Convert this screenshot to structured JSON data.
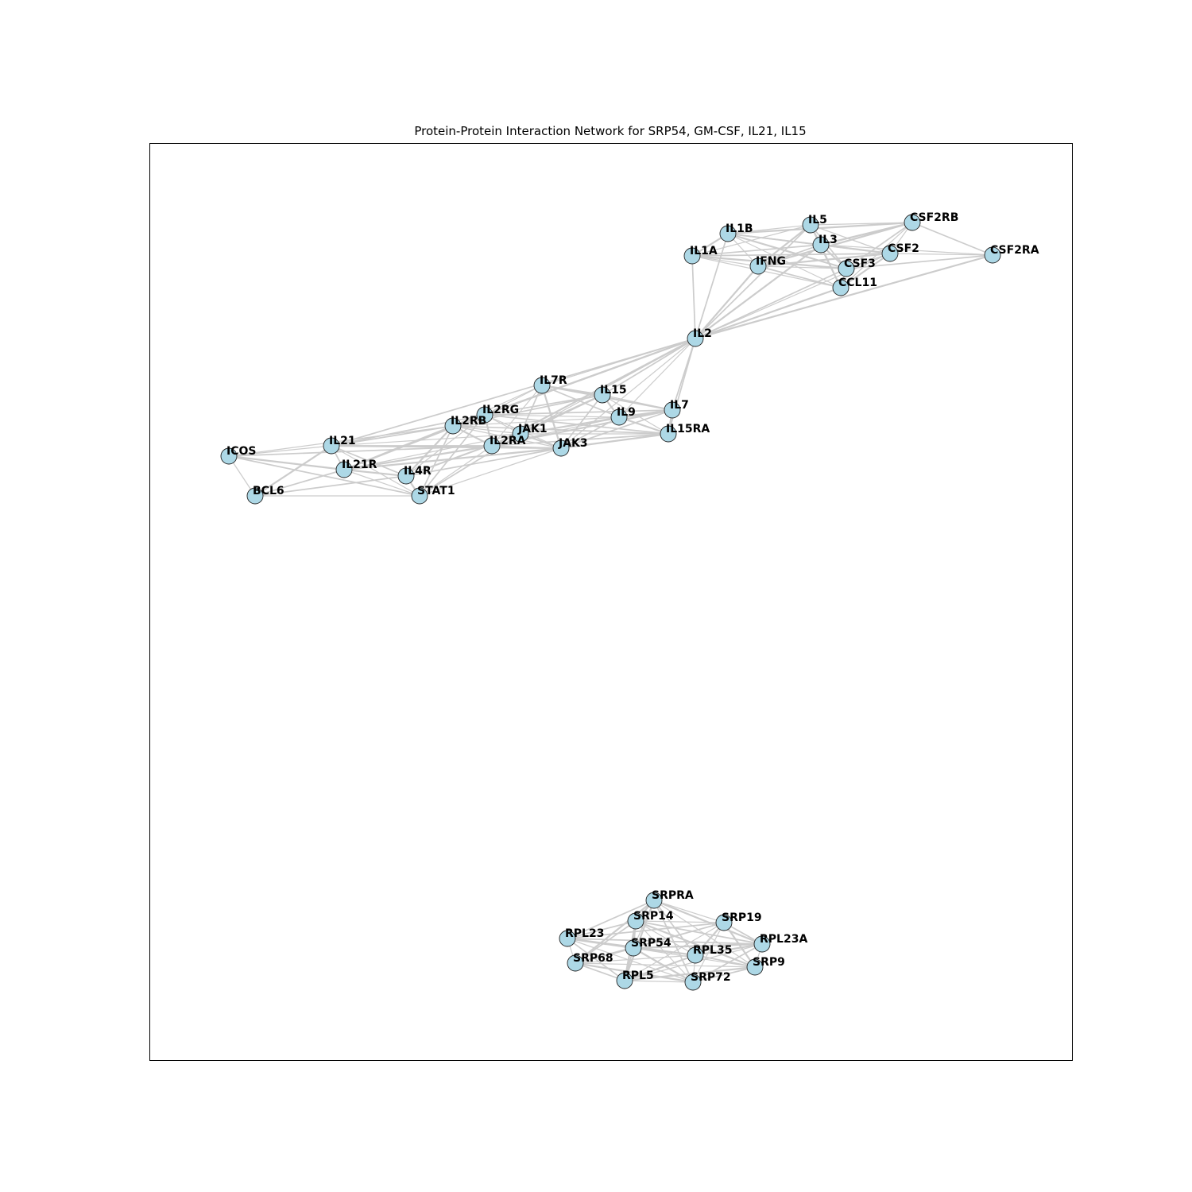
{
  "title": "Protein-Protein Interaction Network for SRP54, GM-CSF, IL21, IL15",
  "colors": {
    "node_fill": "#add8e6",
    "node_stroke": "#222222",
    "edge": "#cccccc",
    "label": "#000000"
  },
  "nodes": [
    {
      "id": "IL1B",
      "label": "IL1B"
    },
    {
      "id": "IL5",
      "label": "IL5"
    },
    {
      "id": "CSF2RB",
      "label": "CSF2RB"
    },
    {
      "id": "IL3",
      "label": "IL3"
    },
    {
      "id": "IL1A",
      "label": "IL1A"
    },
    {
      "id": "IFNG",
      "label": "IFNG"
    },
    {
      "id": "CSF2",
      "label": "CSF2"
    },
    {
      "id": "CSF2RA",
      "label": "CSF2RA"
    },
    {
      "id": "CSF3",
      "label": "CSF3"
    },
    {
      "id": "CCL11",
      "label": "CCL11"
    },
    {
      "id": "IL2",
      "label": "IL2"
    },
    {
      "id": "IL7R",
      "label": "IL7R"
    },
    {
      "id": "IL15",
      "label": "IL15"
    },
    {
      "id": "IL2RG",
      "label": "IL2RG"
    },
    {
      "id": "IL9",
      "label": "IL9"
    },
    {
      "id": "IL7",
      "label": "IL7"
    },
    {
      "id": "IL2RB",
      "label": "IL2RB"
    },
    {
      "id": "JAK1",
      "label": "JAK1"
    },
    {
      "id": "IL15RA",
      "label": "IL15RA"
    },
    {
      "id": "IL21",
      "label": "IL21"
    },
    {
      "id": "IL2RA",
      "label": "IL2RA"
    },
    {
      "id": "JAK3",
      "label": "JAK3"
    },
    {
      "id": "ICOS",
      "label": "ICOS"
    },
    {
      "id": "IL21R",
      "label": "IL21R"
    },
    {
      "id": "IL4R",
      "label": "IL4R"
    },
    {
      "id": "BCL6",
      "label": "BCL6"
    },
    {
      "id": "STAT1",
      "label": "STAT1"
    },
    {
      "id": "SRPRA",
      "label": "SRPRA"
    },
    {
      "id": "SRP14",
      "label": "SRP14"
    },
    {
      "id": "SRP19",
      "label": "SRP19"
    },
    {
      "id": "RPL23",
      "label": "RPL23"
    },
    {
      "id": "RPL23A",
      "label": "RPL23A"
    },
    {
      "id": "SRP54",
      "label": "SRP54"
    },
    {
      "id": "RPL35",
      "label": "RPL35"
    },
    {
      "id": "SRP68",
      "label": "SRP68"
    },
    {
      "id": "SRP9",
      "label": "SRP9"
    },
    {
      "id": "RPL5",
      "label": "RPL5"
    },
    {
      "id": "SRP72",
      "label": "SRP72"
    }
  ],
  "edges": [
    [
      "IL1B",
      "IL5"
    ],
    [
      "IL1B",
      "IL3"
    ],
    [
      "IL1B",
      "IL1A"
    ],
    [
      "IL1B",
      "IFNG"
    ],
    [
      "IL1B",
      "CSF2"
    ],
    [
      "IL1B",
      "CSF3"
    ],
    [
      "IL1B",
      "CCL11"
    ],
    [
      "IL1B",
      "IL2"
    ],
    [
      "IL1B",
      "CSF2RB"
    ],
    [
      "IL5",
      "CSF2RB"
    ],
    [
      "IL5",
      "IL3"
    ],
    [
      "IL5",
      "IFNG"
    ],
    [
      "IL5",
      "CSF2"
    ],
    [
      "IL5",
      "CSF3"
    ],
    [
      "IL5",
      "CCL11"
    ],
    [
      "IL5",
      "IL1A"
    ],
    [
      "IL5",
      "IL2"
    ],
    [
      "CSF2RB",
      "IL3"
    ],
    [
      "CSF2RB",
      "CSF2"
    ],
    [
      "CSF2RB",
      "CSF2RA"
    ],
    [
      "CSF2RB",
      "IFNG"
    ],
    [
      "CSF2RB",
      "CCL11"
    ],
    [
      "CSF2RB",
      "CSF3"
    ],
    [
      "IL3",
      "CSF2"
    ],
    [
      "IL3",
      "CSF2RA"
    ],
    [
      "IL3",
      "IFNG"
    ],
    [
      "IL3",
      "CSF3"
    ],
    [
      "IL3",
      "CCL11"
    ],
    [
      "IL3",
      "IL1A"
    ],
    [
      "IL3",
      "IL2"
    ],
    [
      "IL1A",
      "IFNG"
    ],
    [
      "IL1A",
      "CSF2"
    ],
    [
      "IL1A",
      "CSF3"
    ],
    [
      "IL1A",
      "CCL11"
    ],
    [
      "IL1A",
      "IL2"
    ],
    [
      "IFNG",
      "CSF2"
    ],
    [
      "IFNG",
      "CSF3"
    ],
    [
      "IFNG",
      "CCL11"
    ],
    [
      "IFNG",
      "IL2"
    ],
    [
      "CSF2",
      "CSF2RA"
    ],
    [
      "CSF2",
      "CSF3"
    ],
    [
      "CSF2",
      "CCL11"
    ],
    [
      "CSF2",
      "IL2"
    ],
    [
      "CSF2RA",
      "CSF3"
    ],
    [
      "CSF2RA",
      "IL2"
    ],
    [
      "CSF3",
      "CCL11"
    ],
    [
      "CSF3",
      "IL2"
    ],
    [
      "CCL11",
      "IL2"
    ],
    [
      "IL2",
      "IL7R"
    ],
    [
      "IL2",
      "IL15"
    ],
    [
      "IL2",
      "IL2RG"
    ],
    [
      "IL2",
      "IL9"
    ],
    [
      "IL2",
      "IL7"
    ],
    [
      "IL2",
      "IL2RB"
    ],
    [
      "IL2",
      "JAK1"
    ],
    [
      "IL2",
      "IL15RA"
    ],
    [
      "IL2",
      "IL2RA"
    ],
    [
      "IL2",
      "JAK3"
    ],
    [
      "IL2",
      "IL21"
    ],
    [
      "IL7R",
      "IL15"
    ],
    [
      "IL7R",
      "IL2RG"
    ],
    [
      "IL7R",
      "IL9"
    ],
    [
      "IL7R",
      "IL7"
    ],
    [
      "IL7R",
      "IL2RB"
    ],
    [
      "IL7R",
      "JAK1"
    ],
    [
      "IL7R",
      "JAK3"
    ],
    [
      "IL7R",
      "IL2RA"
    ],
    [
      "IL15",
      "IL2RG"
    ],
    [
      "IL15",
      "IL9"
    ],
    [
      "IL15",
      "IL7"
    ],
    [
      "IL15",
      "IL2RB"
    ],
    [
      "IL15",
      "JAK1"
    ],
    [
      "IL15",
      "IL15RA"
    ],
    [
      "IL15",
      "JAK3"
    ],
    [
      "IL15",
      "IL2RA"
    ],
    [
      "IL2RG",
      "IL9"
    ],
    [
      "IL2RG",
      "IL7"
    ],
    [
      "IL2RG",
      "IL2RB"
    ],
    [
      "IL2RG",
      "JAK1"
    ],
    [
      "IL2RG",
      "IL15RA"
    ],
    [
      "IL2RG",
      "IL2RA"
    ],
    [
      "IL2RG",
      "JAK3"
    ],
    [
      "IL2RG",
      "IL21"
    ],
    [
      "IL2RG",
      "IL21R"
    ],
    [
      "IL2RG",
      "IL4R"
    ],
    [
      "IL2RG",
      "STAT1"
    ],
    [
      "IL9",
      "IL7"
    ],
    [
      "IL9",
      "IL2RB"
    ],
    [
      "IL9",
      "JAK1"
    ],
    [
      "IL9",
      "IL15RA"
    ],
    [
      "IL9",
      "IL2RA"
    ],
    [
      "IL9",
      "JAK3"
    ],
    [
      "IL7",
      "IL15RA"
    ],
    [
      "IL7",
      "JAK1"
    ],
    [
      "IL7",
      "JAK3"
    ],
    [
      "IL7",
      "IL2RA"
    ],
    [
      "IL2RB",
      "JAK1"
    ],
    [
      "IL2RB",
      "IL15RA"
    ],
    [
      "IL2RB",
      "IL2RA"
    ],
    [
      "IL2RB",
      "JAK3"
    ],
    [
      "IL2RB",
      "IL21"
    ],
    [
      "IL2RB",
      "IL21R"
    ],
    [
      "IL2RB",
      "ICOS"
    ],
    [
      "IL2RB",
      "STAT1"
    ],
    [
      "IL2RB",
      "IL4R"
    ],
    [
      "JAK1",
      "IL15RA"
    ],
    [
      "JAK1",
      "IL2RA"
    ],
    [
      "JAK1",
      "JAK3"
    ],
    [
      "JAK1",
      "IL21R"
    ],
    [
      "JAK1",
      "STAT1"
    ],
    [
      "JAK1",
      "IL4R"
    ],
    [
      "JAK1",
      "IL21"
    ],
    [
      "IL15RA",
      "IL2RA"
    ],
    [
      "IL15RA",
      "JAK3"
    ],
    [
      "IL2RA",
      "JAK3"
    ],
    [
      "IL2RA",
      "IL21"
    ],
    [
      "IL2RA",
      "IL21R"
    ],
    [
      "IL2RA",
      "STAT1"
    ],
    [
      "IL2RA",
      "ICOS"
    ],
    [
      "JAK3",
      "IL21R"
    ],
    [
      "JAK3",
      "STAT1"
    ],
    [
      "JAK3",
      "IL4R"
    ],
    [
      "JAK3",
      "IL21"
    ],
    [
      "IL21",
      "ICOS"
    ],
    [
      "IL21",
      "IL21R"
    ],
    [
      "IL21",
      "BCL6"
    ],
    [
      "IL21",
      "STAT1"
    ],
    [
      "IL21",
      "IL4R"
    ],
    [
      "ICOS",
      "IL21R"
    ],
    [
      "ICOS",
      "BCL6"
    ],
    [
      "ICOS",
      "STAT1"
    ],
    [
      "IL21R",
      "IL4R"
    ],
    [
      "IL21R",
      "STAT1"
    ],
    [
      "IL21R",
      "BCL6"
    ],
    [
      "IL4R",
      "STAT1"
    ],
    [
      "BCL6",
      "STAT1"
    ],
    [
      "BCL6",
      "IL4R"
    ],
    [
      "SRPRA",
      "SRP14"
    ],
    [
      "SRPRA",
      "SRP19"
    ],
    [
      "SRPRA",
      "RPL23"
    ],
    [
      "SRPRA",
      "RPL23A"
    ],
    [
      "SRPRA",
      "SRP54"
    ],
    [
      "SRPRA",
      "RPL35"
    ],
    [
      "SRPRA",
      "SRP68"
    ],
    [
      "SRPRA",
      "SRP9"
    ],
    [
      "SRPRA",
      "SRP72"
    ],
    [
      "SRPRA",
      "RPL5"
    ],
    [
      "SRP14",
      "SRP19"
    ],
    [
      "SRP14",
      "RPL23"
    ],
    [
      "SRP14",
      "SRP54"
    ],
    [
      "SRP14",
      "RPL35"
    ],
    [
      "SRP14",
      "SRP68"
    ],
    [
      "SRP14",
      "SRP9"
    ],
    [
      "SRP14",
      "SRP72"
    ],
    [
      "SRP14",
      "RPL23A"
    ],
    [
      "SRP14",
      "RPL5"
    ],
    [
      "SRP19",
      "SRP54"
    ],
    [
      "SRP19",
      "RPL23A"
    ],
    [
      "SRP19",
      "SRP9"
    ],
    [
      "SRP19",
      "SRP72"
    ],
    [
      "SRP19",
      "SRP68"
    ],
    [
      "SRP19",
      "RPL35"
    ],
    [
      "SRP19",
      "RPL5"
    ],
    [
      "SRP19",
      "RPL23"
    ],
    [
      "RPL23",
      "SRP54"
    ],
    [
      "RPL23",
      "SRP68"
    ],
    [
      "RPL23",
      "RPL5"
    ],
    [
      "RPL23",
      "RPL35"
    ],
    [
      "RPL23",
      "SRP72"
    ],
    [
      "RPL23",
      "RPL23A"
    ],
    [
      "RPL23A",
      "RPL35"
    ],
    [
      "RPL23A",
      "SRP9"
    ],
    [
      "RPL23A",
      "SRP72"
    ],
    [
      "RPL23A",
      "SRP54"
    ],
    [
      "RPL23A",
      "RPL5"
    ],
    [
      "SRP54",
      "RPL35"
    ],
    [
      "SRP54",
      "SRP68"
    ],
    [
      "SRP54",
      "SRP9"
    ],
    [
      "SRP54",
      "RPL5"
    ],
    [
      "SRP54",
      "SRP72"
    ],
    [
      "RPL35",
      "SRP68"
    ],
    [
      "RPL35",
      "SRP9"
    ],
    [
      "RPL35",
      "RPL5"
    ],
    [
      "RPL35",
      "SRP72"
    ],
    [
      "SRP68",
      "RPL5"
    ],
    [
      "SRP68",
      "SRP72"
    ],
    [
      "SRP68",
      "SRP9"
    ],
    [
      "SRP9",
      "SRP72"
    ],
    [
      "SRP9",
      "RPL5"
    ],
    [
      "RPL5",
      "SRP72"
    ]
  ]
}
